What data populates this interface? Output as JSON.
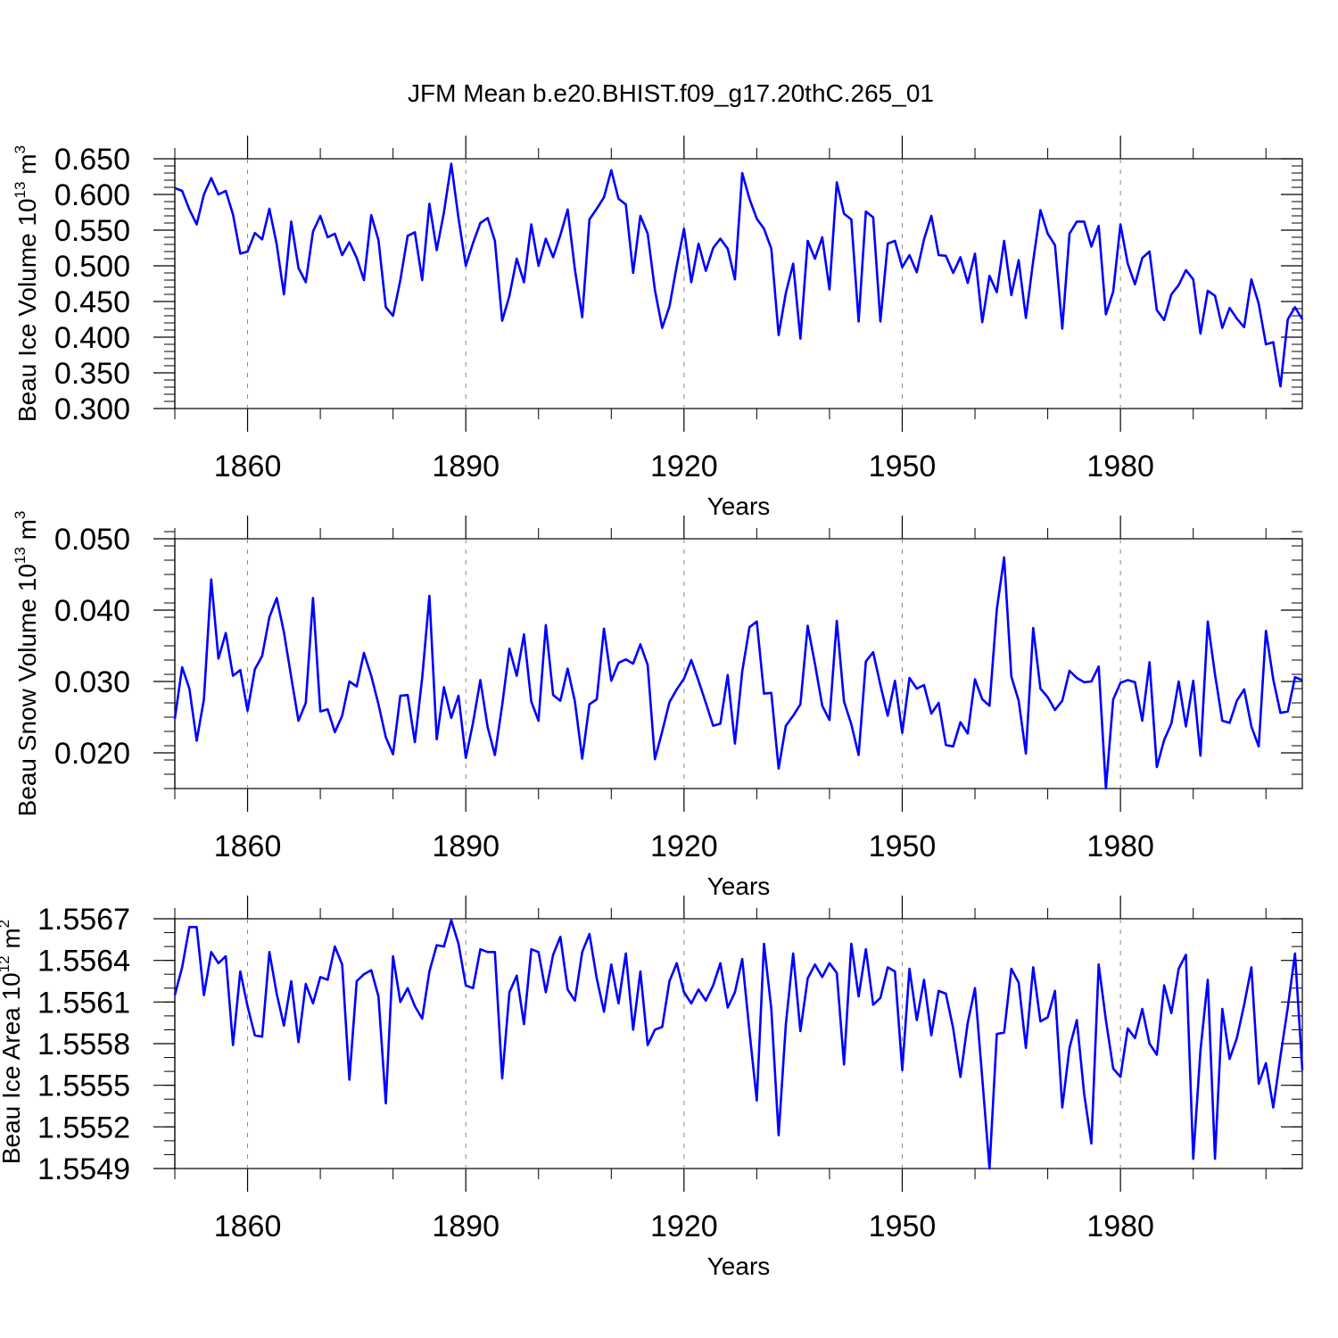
{
  "figure_title": "JFM Mean b.e20.BHIST.f09_g17.20thC.265_01",
  "chart_data": [
    {
      "type": "line",
      "title": "JFM Mean b.e20.BHIST.f09_g17.20thC.265_01",
      "xlabel": "Years",
      "ylabel": {
        "prefix": "Beau Ice Volume 10",
        "exp": "13",
        "unit": " m",
        "unit_exp": "3"
      },
      "xlim": [
        1850,
        2005
      ],
      "ylim": [
        0.3,
        0.65
      ],
      "xticks": [
        1860,
        1890,
        1920,
        1950,
        1980
      ],
      "yticks": [
        "0.650",
        "0.600",
        "0.550",
        "0.500",
        "0.450",
        "0.400",
        "0.350",
        "0.300"
      ],
      "ytick_values": [
        0.65,
        0.6,
        0.55,
        0.5,
        0.45,
        0.4,
        0.35,
        0.3
      ],
      "ytick_minor_step": 0.01,
      "grid": "x-dashed",
      "series": [
        {
          "name": "Beau Ice Volume",
          "color": "#0000ff",
          "x0": 1850,
          "values": [
            0.609,
            0.605,
            0.579,
            0.558,
            0.6,
            0.623,
            0.6,
            0.605,
            0.572,
            0.517,
            0.52,
            0.546,
            0.537,
            0.58,
            0.53,
            0.46,
            0.562,
            0.497,
            0.477,
            0.548,
            0.57,
            0.54,
            0.545,
            0.515,
            0.533,
            0.511,
            0.48,
            0.571,
            0.536,
            0.442,
            0.43,
            0.48,
            0.542,
            0.547,
            0.48,
            0.587,
            0.522,
            0.575,
            0.643,
            0.567,
            0.5,
            0.532,
            0.56,
            0.567,
            0.535,
            0.423,
            0.458,
            0.51,
            0.477,
            0.558,
            0.5,
            0.538,
            0.512,
            0.543,
            0.579,
            0.495,
            0.428,
            0.565,
            0.58,
            0.596,
            0.634,
            0.594,
            0.586,
            0.49,
            0.57,
            0.545,
            0.466,
            0.413,
            0.443,
            0.5,
            0.552,
            0.477,
            0.531,
            0.493,
            0.525,
            0.538,
            0.524,
            0.481,
            0.63,
            0.594,
            0.566,
            0.552,
            0.524,
            0.403,
            0.462,
            0.503,
            0.398,
            0.535,
            0.51,
            0.54,
            0.467,
            0.617,
            0.573,
            0.565,
            0.422,
            0.576,
            0.568,
            0.422,
            0.531,
            0.535,
            0.498,
            0.515,
            0.491,
            0.537,
            0.57,
            0.515,
            0.514,
            0.49,
            0.512,
            0.476,
            0.517,
            0.421,
            0.486,
            0.463,
            0.535,
            0.459,
            0.508,
            0.427,
            0.507,
            0.578,
            0.545,
            0.529,
            0.412,
            0.545,
            0.562,
            0.562,
            0.527,
            0.556,
            0.432,
            0.464,
            0.558,
            0.503,
            0.474,
            0.511,
            0.52,
            0.438,
            0.424,
            0.46,
            0.473,
            0.494,
            0.481,
            0.405,
            0.465,
            0.458,
            0.413,
            0.441,
            0.426,
            0.414,
            0.481,
            0.447,
            0.39,
            0.393,
            0.331,
            0.425,
            0.442,
            0.425
          ]
        }
      ]
    },
    {
      "type": "line",
      "xlabel": "Years",
      "ylabel": {
        "prefix": "Beau Snow Volume 10",
        "exp": "13",
        "unit": " m",
        "unit_exp": "3"
      },
      "xlim": [
        1850,
        2005
      ],
      "ylim": [
        0.015,
        0.05
      ],
      "xticks": [
        1860,
        1890,
        1920,
        1950,
        1980
      ],
      "yticks": [
        "0.050",
        "0.040",
        "0.030",
        "0.020"
      ],
      "ytick_values": [
        0.05,
        0.04,
        0.03,
        0.02
      ],
      "ytick_minor_step": 0.002,
      "grid": "x-dashed",
      "series": [
        {
          "name": "Beau Snow Volume",
          "color": "#0000ff",
          "x0": 1850,
          "values": [
            0.0248,
            0.032,
            0.029,
            0.0217,
            0.0275,
            0.0443,
            0.0332,
            0.0368,
            0.0308,
            0.0316,
            0.0259,
            0.0317,
            0.0336,
            0.039,
            0.0417,
            0.0369,
            0.0306,
            0.0245,
            0.027,
            0.0417,
            0.0258,
            0.0261,
            0.0229,
            0.0252,
            0.03,
            0.0293,
            0.034,
            0.0308,
            0.0268,
            0.0222,
            0.0198,
            0.028,
            0.0281,
            0.0215,
            0.0305,
            0.042,
            0.0219,
            0.0292,
            0.0249,
            0.028,
            0.0193,
            0.0242,
            0.0302,
            0.0236,
            0.0197,
            0.0267,
            0.0346,
            0.0308,
            0.0366,
            0.0272,
            0.0245,
            0.0379,
            0.0281,
            0.0273,
            0.0318,
            0.0272,
            0.0192,
            0.0268,
            0.0275,
            0.0374,
            0.0301,
            0.0326,
            0.0331,
            0.0325,
            0.0352,
            0.0323,
            0.0191,
            0.023,
            0.0271,
            0.0289,
            0.0304,
            0.033,
            0.0301,
            0.027,
            0.0238,
            0.0241,
            0.0309,
            0.0213,
            0.0314,
            0.0376,
            0.0384,
            0.0283,
            0.0284,
            0.0178,
            0.0238,
            0.0252,
            0.0268,
            0.0378,
            0.0325,
            0.0266,
            0.0246,
            0.0385,
            0.0272,
            0.024,
            0.0197,
            0.0328,
            0.0341,
            0.0295,
            0.0252,
            0.0301,
            0.0228,
            0.0305,
            0.029,
            0.0295,
            0.0255,
            0.027,
            0.0211,
            0.0209,
            0.0243,
            0.0227,
            0.0303,
            0.0275,
            0.0266,
            0.0401,
            0.0474,
            0.0307,
            0.0273,
            0.0199,
            0.0375,
            0.029,
            0.0278,
            0.026,
            0.0273,
            0.0315,
            0.0305,
            0.0299,
            0.03,
            0.0321,
            0.015,
            0.0275,
            0.0298,
            0.0302,
            0.0299,
            0.0245,
            0.0327,
            0.018,
            0.0218,
            0.0241,
            0.03,
            0.0237,
            0.0301,
            0.0196,
            0.0384,
            0.031,
            0.0245,
            0.0242,
            0.0273,
            0.0289,
            0.0237,
            0.0209,
            0.0371,
            0.0303,
            0.0256,
            0.0258,
            0.0306,
            0.0302
          ]
        }
      ]
    },
    {
      "type": "line",
      "xlabel": "Years",
      "ylabel": {
        "prefix": "Beau Ice Area 10",
        "exp": "12",
        "unit": " m",
        "unit_exp": "2"
      },
      "xlim": [
        1850,
        2005
      ],
      "ylim": [
        1.5549,
        1.5567
      ],
      "xticks": [
        1860,
        1890,
        1920,
        1950,
        1980
      ],
      "yticks": [
        "1.5567",
        "1.5564",
        "1.5561",
        "1.5558",
        "1.5555",
        "1.5552",
        "1.5549"
      ],
      "ytick_values": [
        1.5567,
        1.5564,
        1.5561,
        1.5558,
        1.5555,
        1.5552,
        1.5549
      ],
      "ytick_minor_step": 0.0001,
      "grid": "x-dashed",
      "series": [
        {
          "name": "Beau Ice Area",
          "color": "#0000ff",
          "x0": 1850,
          "values": [
            1.55615,
            1.55635,
            1.55664,
            1.55664,
            1.55615,
            1.55646,
            1.55638,
            1.55643,
            1.55579,
            1.55632,
            1.55607,
            1.55586,
            1.55585,
            1.55646,
            1.55616,
            1.55593,
            1.55625,
            1.55581,
            1.55623,
            1.55609,
            1.55628,
            1.55626,
            1.5565,
            1.55637,
            1.55554,
            1.55625,
            1.5563,
            1.55633,
            1.55614,
            1.55537,
            1.55643,
            1.5561,
            1.5562,
            1.55607,
            1.55598,
            1.55632,
            1.55651,
            1.5565,
            1.55669,
            1.55652,
            1.55622,
            1.5562,
            1.55648,
            1.55646,
            1.55646,
            1.55555,
            1.55617,
            1.55629,
            1.55594,
            1.55648,
            1.55646,
            1.55617,
            1.55644,
            1.55657,
            1.55619,
            1.55611,
            1.55646,
            1.55659,
            1.55627,
            1.55603,
            1.55637,
            1.55609,
            1.55645,
            1.5559,
            1.55632,
            1.55579,
            1.5559,
            1.55592,
            1.55625,
            1.55638,
            1.55617,
            1.55609,
            1.55619,
            1.55611,
            1.55622,
            1.55638,
            1.55606,
            1.55617,
            1.55641,
            1.55589,
            1.55539,
            1.55652,
            1.55605,
            1.55514,
            1.55594,
            1.55645,
            1.55589,
            1.55627,
            1.55637,
            1.55628,
            1.55638,
            1.55631,
            1.55565,
            1.55652,
            1.55614,
            1.55648,
            1.55608,
            1.55613,
            1.55635,
            1.55632,
            1.55561,
            1.55634,
            1.55597,
            1.55626,
            1.55586,
            1.55618,
            1.55616,
            1.55591,
            1.55556,
            1.55595,
            1.5562,
            1.55555,
            1.5549,
            1.55587,
            1.55588,
            1.55634,
            1.55624,
            1.55577,
            1.55635,
            1.55596,
            1.55599,
            1.55618,
            1.55534,
            1.55577,
            1.55597,
            1.55544,
            1.55508,
            1.55637,
            1.55597,
            1.55562,
            1.55556,
            1.55591,
            1.55584,
            1.55605,
            1.5558,
            1.55572,
            1.55622,
            1.55602,
            1.55634,
            1.55644,
            1.55497,
            1.55575,
            1.55626,
            1.55497,
            1.55605,
            1.55569,
            1.55584,
            1.55608,
            1.55635,
            1.55551,
            1.55566,
            1.55534,
            1.55571,
            1.55606,
            1.55645,
            1.55561
          ]
        }
      ]
    }
  ]
}
